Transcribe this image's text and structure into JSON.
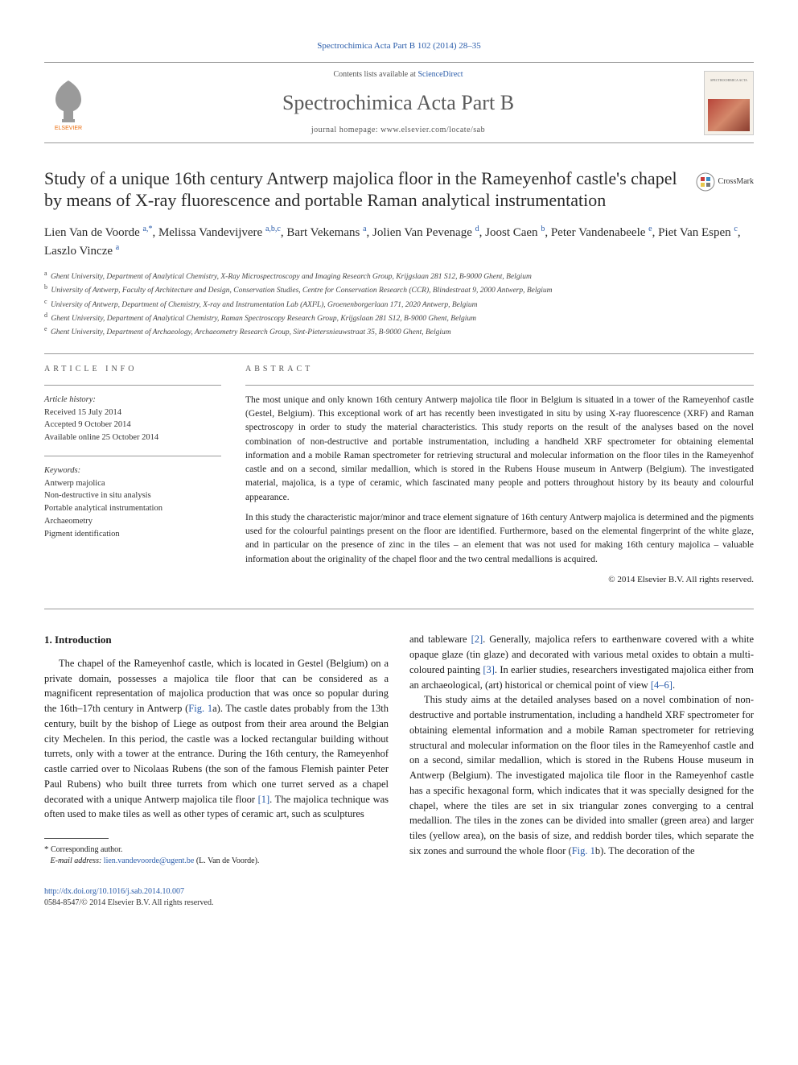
{
  "top_link": {
    "journal": "Spectrochimica Acta Part B",
    "citation": "102 (2014) 28–35"
  },
  "header": {
    "contents_prefix": "Contents lists available at ",
    "contents_link": "ScienceDirect",
    "journal_name": "Spectrochimica Acta Part B",
    "homepage_prefix": "journal homepage: ",
    "homepage_url": "www.elsevier.com/locate/sab",
    "cover_label": "SPECTROCHIMICA ACTA"
  },
  "crossmark_label": "CrossMark",
  "title": "Study of a unique 16th century Antwerp majolica floor in the Rameyenhof castle's chapel by means of X-ray fluorescence and portable Raman analytical instrumentation",
  "authors": [
    {
      "name": "Lien Van de Voorde",
      "affs": "a,",
      "corr": "*"
    },
    {
      "name": "Melissa Vandevijvere",
      "affs": "a,b,c"
    },
    {
      "name": "Bart Vekemans",
      "affs": "a"
    },
    {
      "name": "Jolien Van Pevenage",
      "affs": "d"
    },
    {
      "name": "Joost Caen",
      "affs": "b"
    },
    {
      "name": "Peter Vandenabeele",
      "affs": "e"
    },
    {
      "name": "Piet Van Espen",
      "affs": "c"
    },
    {
      "name": "Laszlo Vincze",
      "affs": "a"
    }
  ],
  "affiliations": [
    {
      "key": "a",
      "text": "Ghent University, Department of Analytical Chemistry, X-Ray Microspectroscopy and Imaging Research Group, Krijgslaan 281 S12, B-9000 Ghent, Belgium"
    },
    {
      "key": "b",
      "text": "University of Antwerp, Faculty of Architecture and Design, Conservation Studies, Centre for Conservation Research (CCR), Blindestraat 9, 2000 Antwerp, Belgium"
    },
    {
      "key": "c",
      "text": "University of Antwerp, Department of Chemistry, X-ray and Instrumentation Lab (AXI²L), Groenenborgerlaan 171, 2020 Antwerp, Belgium"
    },
    {
      "key": "d",
      "text": "Ghent University, Department of Analytical Chemistry, Raman Spectroscopy Research Group, Krijgslaan 281 S12, B-9000 Ghent, Belgium"
    },
    {
      "key": "e",
      "text": "Ghent University, Department of Archaeology, Archaeometry Research Group, Sint-Pietersnieuwstraat 35, B-9000 Ghent, Belgium"
    }
  ],
  "article_info": {
    "heading": "article info",
    "history_label": "Article history:",
    "received": "Received 15 July 2014",
    "accepted": "Accepted 9 October 2014",
    "online": "Available online 25 October 2014",
    "keywords_label": "Keywords:",
    "keywords": [
      "Antwerp majolica",
      "Non-destructive in situ analysis",
      "Portable analytical instrumentation",
      "Archaeometry",
      "Pigment identification"
    ]
  },
  "abstract": {
    "heading": "abstract",
    "p1": "The most unique and only known 16th century Antwerp majolica tile floor in Belgium is situated in a tower of the Rameyenhof castle (Gestel, Belgium). This exceptional work of art has recently been investigated in situ by using X-ray fluorescence (XRF) and Raman spectroscopy in order to study the material characteristics. This study reports on the result of the analyses based on the novel combination of non-destructive and portable instrumentation, including a handheld XRF spectrometer for obtaining elemental information and a mobile Raman spectrometer for retrieving structural and molecular information on the floor tiles in the Rameyenhof castle and on a second, similar medallion, which is stored in the Rubens House museum in Antwerp (Belgium). The investigated material, majolica, is a type of ceramic, which fascinated many people and potters throughout history by its beauty and colourful appearance.",
    "p2": "In this study the characteristic major/minor and trace element signature of 16th century Antwerp majolica is determined and the pigments used for the colourful paintings present on the floor are identified. Furthermore, based on the elemental fingerprint of the white glaze, and in particular on the presence of zinc in the tiles – an element that was not used for making 16th century majolica – valuable information about the originality of the chapel floor and the two central medallions is acquired.",
    "copyright": "© 2014 Elsevier B.V. All rights reserved."
  },
  "body": {
    "section_heading": "1. Introduction",
    "col1_p1a": "The chapel of the Rameyenhof castle, which is located in Gestel (Belgium) on a private domain, possesses a majolica tile floor that can be considered as a magnificent representation of majolica production that was once so popular during the 16th–17th century in Antwerp (",
    "col1_fig1": "Fig. 1",
    "col1_p1b": "a). The castle dates probably from the 13th century, built by the bishop of Liege as outpost from their area around the Belgian city Mechelen. In this period, the castle was a locked rectangular building without turrets, only with a tower at the entrance. During the 16th century, the Rameyenhof castle carried over to Nicolaas Rubens (the son of the famous Flemish painter Peter Paul Rubens) who built three turrets from which one turret served as a chapel decorated with a unique Antwerp majolica tile floor ",
    "col1_ref1": "[1]",
    "col1_p1c": ". The majolica technique was often used to make tiles as well as other types of ceramic art, such as sculptures",
    "col2_p1a": "and tableware ",
    "col2_ref2": "[2]",
    "col2_p1b": ". Generally, majolica refers to earthenware covered with a white opaque glaze (tin glaze) and decorated with various metal oxides to obtain a multi-coloured painting ",
    "col2_ref3": "[3]",
    "col2_p1c": ". In earlier studies, researchers investigated majolica either from an archaeological, (art) historical or chemical point of view ",
    "col2_ref46": "[4–6]",
    "col2_p1d": ".",
    "col2_p2a": "This study aims at the detailed analyses based on a novel combination of non-destructive and portable instrumentation, including a handheld XRF spectrometer for obtaining elemental information and a mobile Raman spectrometer for retrieving structural and molecular information on the floor tiles in the Rameyenhof castle and on a second, similar medallion, which is stored in the Rubens House museum in Antwerp (Belgium). The investigated majolica tile floor in the Rameyenhof castle has a specific hexagonal form, which indicates that it was specially designed for the chapel, where the tiles are set in six triangular zones converging to a central medallion. The tiles in the zones can be divided into smaller (green area) and larger tiles (yellow area), on the basis of size, and reddish border tiles, which separate the six zones and surround the whole floor (",
    "col2_fig1b": "Fig. 1",
    "col2_p2b": "b). The decoration of the"
  },
  "footnote": {
    "corr_label": "Corresponding author.",
    "email_label": "E-mail address:",
    "email": "lien.vandevoorde@ugent.be",
    "email_name": "(L. Van de Voorde)."
  },
  "footer": {
    "doi": "http://dx.doi.org/10.1016/j.sab.2014.10.007",
    "issn_line": "0584-8547/© 2014 Elsevier B.V. All rights reserved."
  },
  "colors": {
    "link": "#2a5caa",
    "text": "#1a1a1a",
    "muted": "#555555",
    "rule": "#999999",
    "elsevier_orange": "#eb6b0b",
    "elsevier_grey": "#9a9a9a"
  }
}
